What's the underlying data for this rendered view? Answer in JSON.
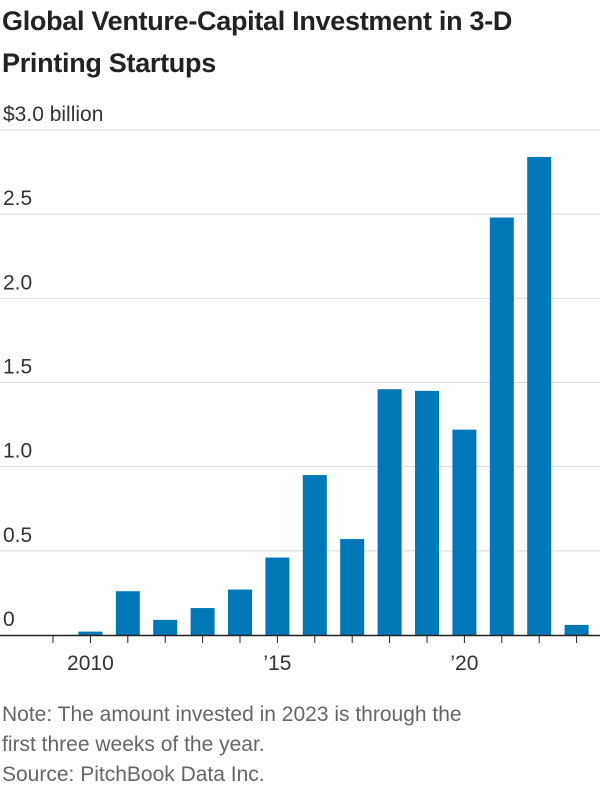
{
  "title": "Global Venture-Capital Investment in 3-D Printing Startups",
  "note": "Note: The amount invested in 2023 is through the first three weeks of the year.",
  "note_line1": "Note: The amount invested in 2023 is through the",
  "note_line2": "first three weeks of the year.",
  "source": "Source: PitchBook Data Inc.",
  "colors": {
    "bar": "#0077b6",
    "grid": "#d9d9d9",
    "axis": "#222222"
  },
  "chart_data": {
    "type": "bar",
    "categories": [
      "2009",
      "2010",
      "2011",
      "2012",
      "2013",
      "2014",
      "2015",
      "2016",
      "2017",
      "2018",
      "2019",
      "2020",
      "2021",
      "2022",
      "2023"
    ],
    "values": [
      0,
      0.02,
      0.26,
      0.09,
      0.16,
      0.27,
      0.46,
      0.95,
      0.57,
      1.46,
      1.45,
      1.22,
      2.48,
      2.84,
      0.06
    ],
    "ylim": [
      0,
      3.0
    ],
    "y_ticks": [
      {
        "value": 0,
        "label": "0"
      },
      {
        "value": 0.5,
        "label": "0.5"
      },
      {
        "value": 1.0,
        "label": "1.0"
      },
      {
        "value": 1.5,
        "label": "1.5"
      },
      {
        "value": 2.0,
        "label": "2.0"
      },
      {
        "value": 2.5,
        "label": "2.5"
      },
      {
        "value": 3.0,
        "label": "$3.0 billion"
      }
    ],
    "x_ticks": [
      {
        "category": "2010",
        "label": "2010"
      },
      {
        "category": "2015",
        "label": "’15"
      },
      {
        "category": "2020",
        "label": "’20"
      }
    ],
    "grid": true
  }
}
